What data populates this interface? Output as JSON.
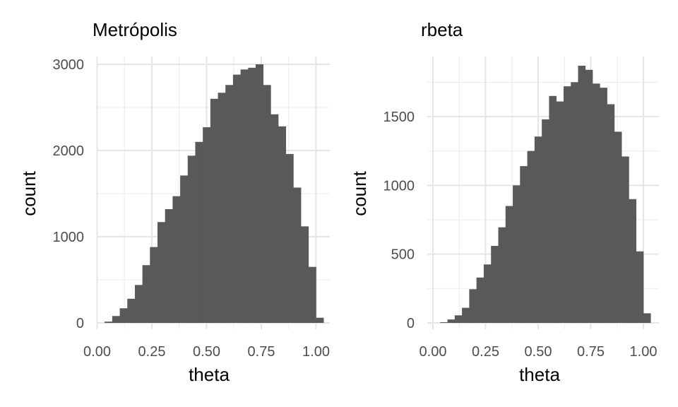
{
  "chart_data": [
    {
      "type": "bar",
      "title": "Metrópolis",
      "xlabel": "theta",
      "ylabel": "count",
      "xlim": [
        -0.02,
        1.02
      ],
      "ylim": [
        0,
        3000
      ],
      "xticks": [
        0,
        0.25,
        0.5,
        0.75,
        1
      ],
      "xtick_labels": [
        "0.00",
        "0.25",
        "0.50",
        "0.75",
        "1.00"
      ],
      "yticks": [
        0,
        1000,
        2000,
        3000
      ],
      "ytick_labels": [
        "0",
        "1000",
        "2000",
        "3000"
      ],
      "grid": true,
      "bar_color": "#595959",
      "x": [
        0.0172,
        0.0517,
        0.0862,
        0.1207,
        0.1552,
        0.1897,
        0.2241,
        0.2586,
        0.2931,
        0.3276,
        0.3621,
        0.3966,
        0.431,
        0.4655,
        0.5,
        0.5345,
        0.569,
        0.6034,
        0.6379,
        0.6724,
        0.7069,
        0.7414,
        0.7759,
        0.8103,
        0.8448,
        0.8793,
        0.9138,
        0.9483,
        0.9828,
        1.0172
      ],
      "values": [
        0,
        15,
        80,
        170,
        280,
        440,
        670,
        880,
        1170,
        1320,
        1470,
        1710,
        1940,
        2100,
        2270,
        2600,
        2670,
        2760,
        2880,
        2940,
        2960,
        3000,
        2760,
        2420,
        2280,
        1960,
        1570,
        1120,
        650,
        60
      ]
    },
    {
      "type": "bar",
      "title": "rbeta",
      "xlabel": "theta",
      "ylabel": "count",
      "xlim": [
        -0.02,
        1.02
      ],
      "ylim": [
        0,
        1900
      ],
      "xticks": [
        0,
        0.25,
        0.5,
        0.75,
        1
      ],
      "xtick_labels": [
        "0.00",
        "0.25",
        "0.50",
        "0.75",
        "1.00"
      ],
      "yticks": [
        0,
        500,
        1000,
        1500
      ],
      "ytick_labels": [
        "0",
        "500",
        "1000",
        "1500"
      ],
      "grid": true,
      "bar_color": "#595959",
      "x": [
        0.0172,
        0.0517,
        0.0862,
        0.1207,
        0.1552,
        0.1897,
        0.2241,
        0.2586,
        0.2931,
        0.3276,
        0.3621,
        0.3966,
        0.431,
        0.4655,
        0.5,
        0.5345,
        0.569,
        0.6034,
        0.6379,
        0.6724,
        0.7069,
        0.7414,
        0.7759,
        0.8103,
        0.8448,
        0.8793,
        0.9138,
        0.9483,
        0.9828,
        1.0172
      ],
      "values": [
        0,
        5,
        25,
        55,
        110,
        245,
        330,
        425,
        560,
        695,
        850,
        1000,
        1140,
        1250,
        1355,
        1480,
        1650,
        1610,
        1720,
        1750,
        1870,
        1840,
        1740,
        1710,
        1590,
        1390,
        1210,
        900,
        520,
        70
      ]
    }
  ]
}
